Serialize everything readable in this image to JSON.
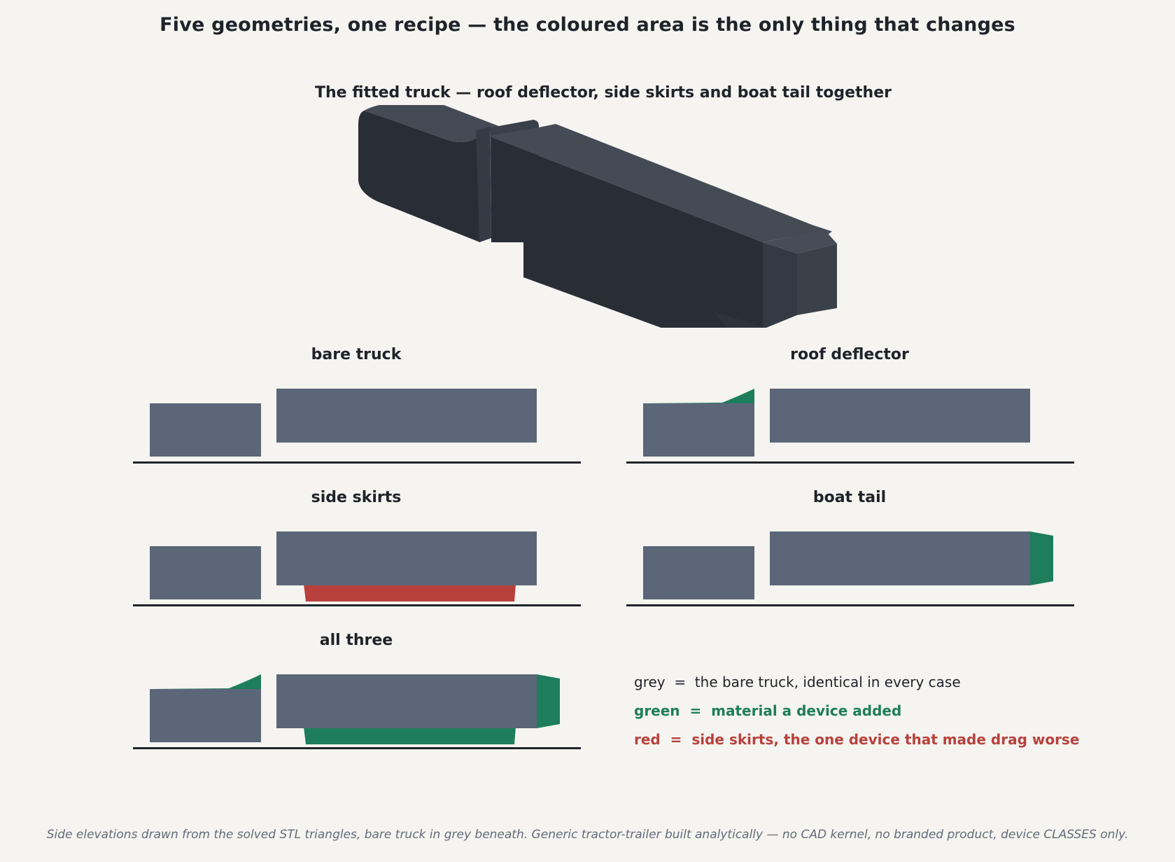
{
  "title": "Five geometries, one recipe — the coloured area is the only thing that changes",
  "hero": {
    "title": "The fitted truck — roof deflector, side skirts and boat tail together"
  },
  "panels": [
    {
      "title": "bare truck",
      "roof": "none",
      "skirts": "none",
      "tail": "none"
    },
    {
      "title": "roof deflector",
      "roof": "green",
      "skirts": "none",
      "tail": "none"
    },
    {
      "title": "side skirts",
      "roof": "none",
      "skirts": "red",
      "tail": "none"
    },
    {
      "title": "boat tail",
      "roof": "none",
      "skirts": "none",
      "tail": "green"
    },
    {
      "title": "all three",
      "roof": "green",
      "skirts": "green",
      "tail": "green"
    }
  ],
  "legend": {
    "grey": "grey  =  the bare truck, identical in every case",
    "green": "green  =  material a device added",
    "red": "red  =  side skirts, the one device that made drag worse"
  },
  "colors": {
    "background": "#f5f4f0",
    "truck_grey": "#5b6778",
    "device_green": "#1e7d5c",
    "worse_red": "#b8413d",
    "ground": "#1f2329",
    "hero_dark": "#282d36",
    "hero_top": "#444b54",
    "hero_mid": "#353b44"
  },
  "footnote": "Side elevations drawn from the solved STL triangles, bare truck in grey beneath. Generic tractor-trailer built analytically — no CAD kernel, no branded product, device CLASSES only."
}
